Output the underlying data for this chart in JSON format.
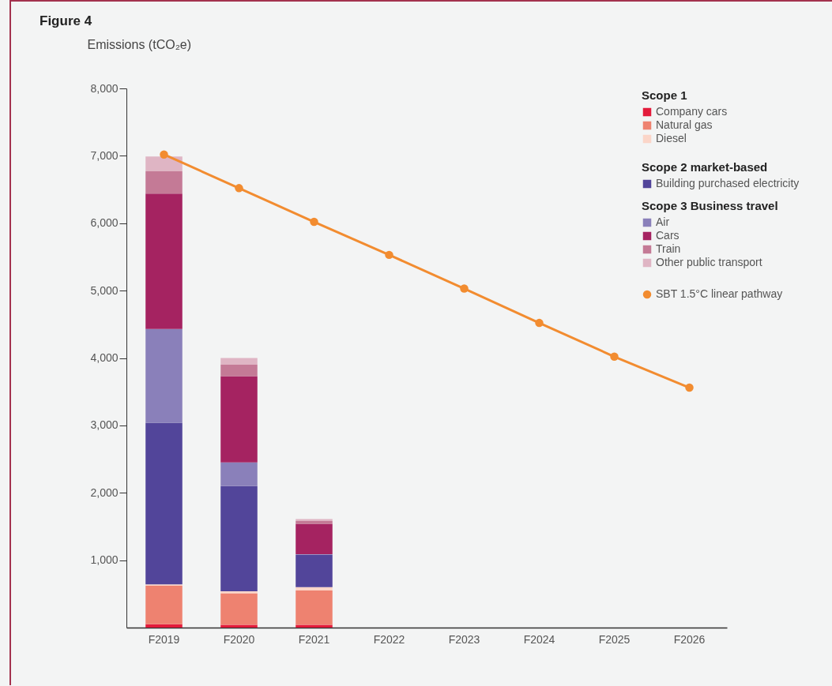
{
  "chart_data": {
    "type": "bar",
    "stacked": true,
    "title": "Figure 4",
    "ylabel": "Emissions (tCO₂e)",
    "categories": [
      "F2019",
      "F2020",
      "F2021",
      "F2022",
      "F2023",
      "F2024",
      "F2025",
      "F2026"
    ],
    "ylim": [
      0,
      8000
    ],
    "yticks": [
      {
        "value": 1000,
        "label": "1,000"
      },
      {
        "value": 2000,
        "label": "2,000"
      },
      {
        "value": 3000,
        "label": "3,000"
      },
      {
        "value": 4000,
        "label": "4,000"
      },
      {
        "value": 5000,
        "label": "5,000"
      },
      {
        "value": 6000,
        "label": "6,000"
      },
      {
        "value": 7000,
        "label": "7,000"
      },
      {
        "value": 8000,
        "label": "8,000"
      }
    ],
    "grid": false,
    "legend": "top right",
    "marker": "circle",
    "annotations": [
      "Scope 1",
      "Scope 2 market-based",
      "Scope 3 Business travel"
    ],
    "series": [
      {
        "name": "Company cars",
        "color": "#e31b3b",
        "values": [
          50,
          40,
          40,
          null,
          null,
          null,
          null,
          null
        ]
      },
      {
        "name": "Natural gas",
        "color": "#ee8270",
        "values": [
          570,
          470,
          510,
          null,
          null,
          null,
          null,
          null
        ]
      },
      {
        "name": "Diesel",
        "color": "#fbd5c8",
        "values": [
          20,
          30,
          50,
          null,
          null,
          null,
          null,
          null
        ]
      },
      {
        "name": "Building purchased electricity",
        "color": "#52459a",
        "values": [
          2400,
          1560,
          480,
          null,
          null,
          null,
          null,
          null
        ]
      },
      {
        "name": "Air",
        "color": "#8a80ba",
        "values": [
          1390,
          350,
          10,
          null,
          null,
          null,
          null,
          null
        ]
      },
      {
        "name": "Cars",
        "color": "#a52361",
        "values": [
          2010,
          1280,
          450,
          null,
          null,
          null,
          null,
          null
        ]
      },
      {
        "name": "Train",
        "color": "#c47a96",
        "values": [
          330,
          170,
          40,
          null,
          null,
          null,
          null,
          null
        ]
      },
      {
        "name": "Other public transport",
        "color": "#dfb5c4",
        "values": [
          220,
          100,
          30,
          null,
          null,
          null,
          null,
          null
        ]
      },
      {
        "name": "SBT 1.5°C linear pathway",
        "type": "line",
        "color": "#f28c30",
        "values": [
          7020,
          6520,
          6020,
          5530,
          5030,
          4520,
          4020,
          3560
        ]
      }
    ]
  }
}
